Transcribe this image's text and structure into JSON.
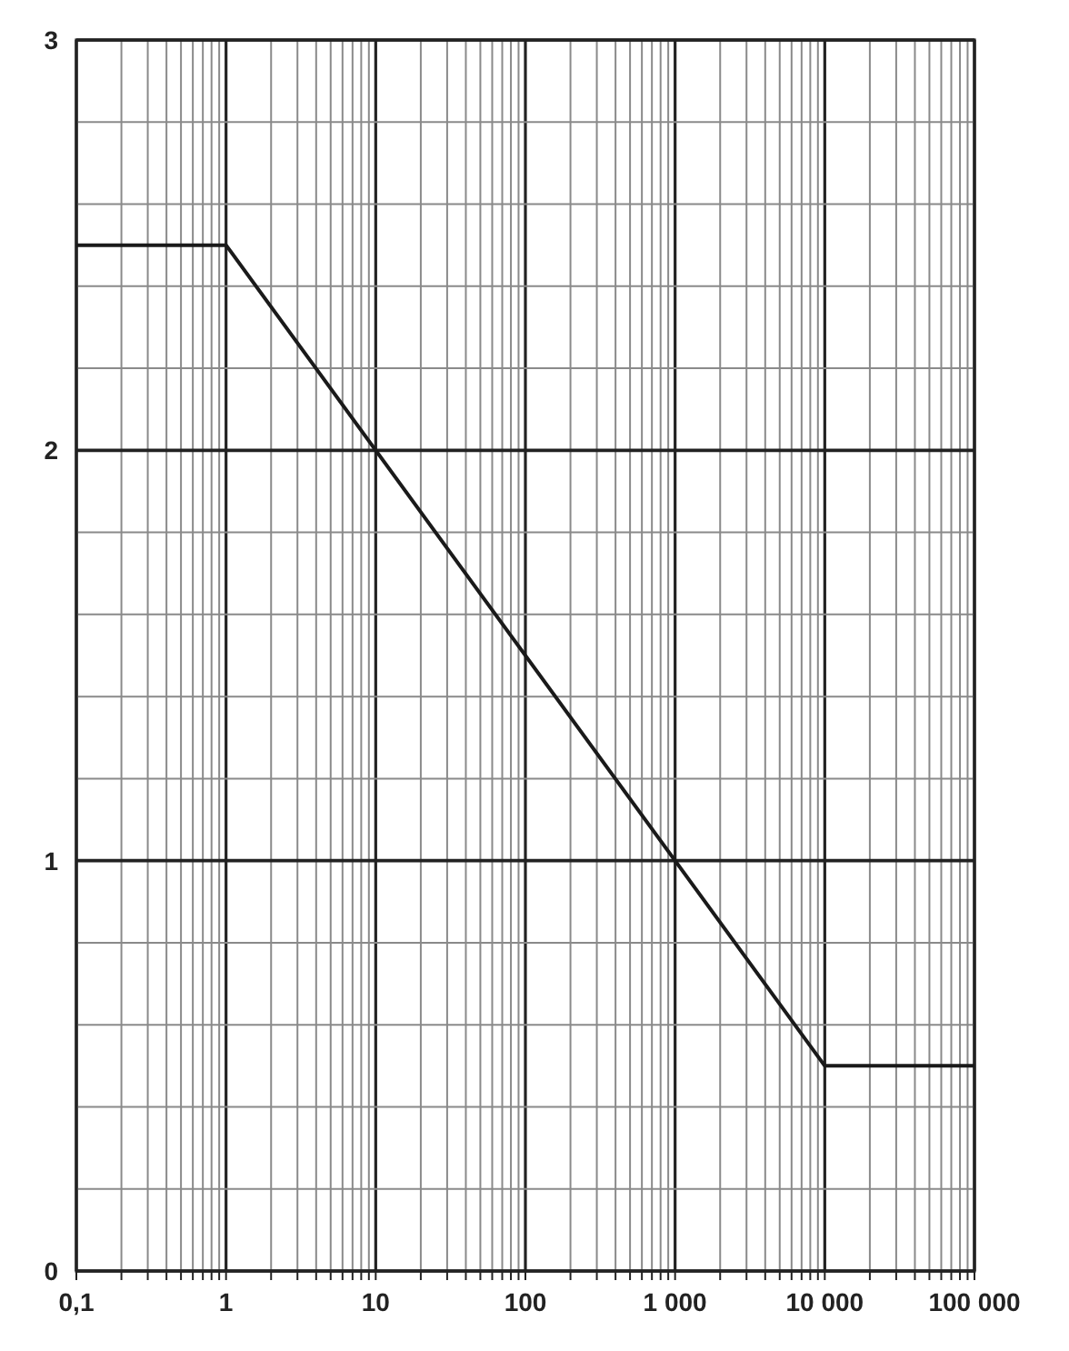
{
  "chart_data": {
    "type": "line",
    "log": "x",
    "grid": true,
    "marker": "none",
    "line_style": "solid",
    "x": [
      0.1,
      1,
      10000,
      100000
    ],
    "series": [
      {
        "color": "#1a1a1a",
        "values": [
          2.5,
          2.5,
          0.5,
          0.5
        ]
      }
    ],
    "xlim": [
      0.1,
      100000
    ],
    "xticks": [
      {
        "value": 0.1,
        "label": "0,1"
      },
      {
        "value": 0.2,
        "label": null
      },
      {
        "value": 0.3,
        "label": null
      },
      {
        "value": 0.4,
        "label": null
      },
      {
        "value": 0.5,
        "label": null
      },
      {
        "value": 0.6,
        "label": null
      },
      {
        "value": 0.7,
        "label": null
      },
      {
        "value": 0.8,
        "label": null
      },
      {
        "value": 0.9,
        "label": null
      },
      1,
      {
        "value": 2,
        "label": null
      },
      {
        "value": 3,
        "label": null
      },
      {
        "value": 4,
        "label": null
      },
      {
        "value": 5,
        "label": null
      },
      {
        "value": 6,
        "label": null
      },
      {
        "value": 7,
        "label": null
      },
      {
        "value": 8,
        "label": null
      },
      {
        "value": 9,
        "label": null
      },
      10,
      {
        "value": 20,
        "label": null
      },
      {
        "value": 30,
        "label": null
      },
      {
        "value": 40,
        "label": null
      },
      {
        "value": 50,
        "label": null
      },
      {
        "value": 60,
        "label": null
      },
      {
        "value": 70,
        "label": null
      },
      {
        "value": 80,
        "label": null
      },
      {
        "value": 90,
        "label": null
      },
      100,
      {
        "value": 200,
        "label": null
      },
      {
        "value": 300,
        "label": null
      },
      {
        "value": 400,
        "label": null
      },
      {
        "value": 500,
        "label": null
      },
      {
        "value": 600,
        "label": null
      },
      {
        "value": 700,
        "label": null
      },
      {
        "value": 800,
        "label": null
      },
      {
        "value": 900,
        "label": null
      },
      {
        "value": 1000,
        "label": "1 000"
      },
      {
        "value": 2000,
        "label": null
      },
      {
        "value": 3000,
        "label": null
      },
      {
        "value": 4000,
        "label": null
      },
      {
        "value": 5000,
        "label": null
      },
      {
        "value": 6000,
        "label": null
      },
      {
        "value": 7000,
        "label": null
      },
      {
        "value": 8000,
        "label": null
      },
      {
        "value": 9000,
        "label": null
      },
      {
        "value": 10000,
        "label": "10 000"
      },
      {
        "value": 20000,
        "label": null
      },
      {
        "value": 30000,
        "label": null
      },
      {
        "value": 40000,
        "label": null
      },
      {
        "value": 50000,
        "label": null
      },
      {
        "value": 60000,
        "label": null
      },
      {
        "value": 70000,
        "label": null
      },
      {
        "value": 80000,
        "label": null
      },
      {
        "value": 90000,
        "label": null
      },
      {
        "value": 100000,
        "label": "100 000"
      }
    ],
    "ylim": [
      0,
      3
    ],
    "yticks": [
      0,
      {
        "value": 0.2,
        "label": null
      },
      {
        "value": 0.4,
        "label": null
      },
      {
        "value": 0.6,
        "label": null
      },
      {
        "value": 0.8,
        "label": null
      },
      1,
      {
        "value": 1.2,
        "label": null
      },
      {
        "value": 1.4,
        "label": null
      },
      {
        "value": 1.6,
        "label": null
      },
      {
        "value": 1.8,
        "label": null
      },
      2,
      {
        "value": 2.2,
        "label": null
      },
      {
        "value": 2.4,
        "label": null
      },
      {
        "value": 2.6,
        "label": null
      },
      {
        "value": 2.8,
        "label": null
      },
      3
    ]
  }
}
